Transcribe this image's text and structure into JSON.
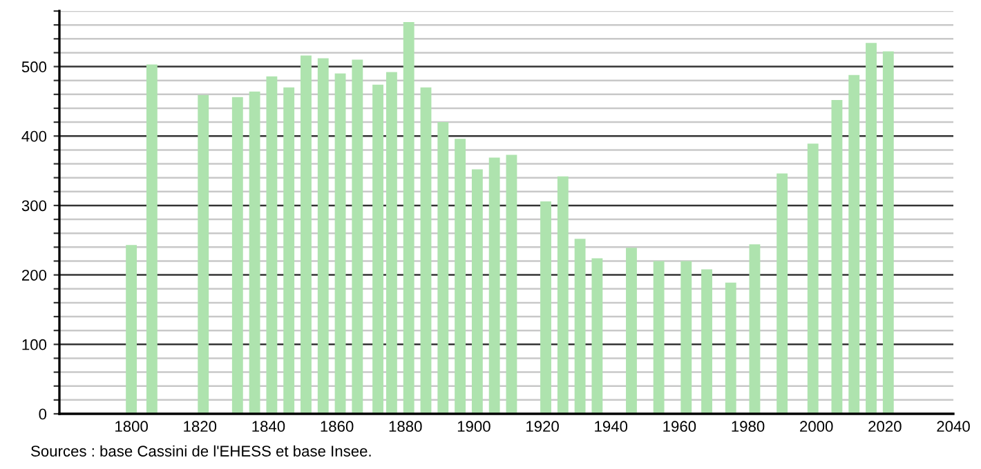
{
  "chart_data": {
    "type": "bar",
    "x": [
      1800,
      1806,
      1821,
      1831,
      1836,
      1841,
      1846,
      1851,
      1856,
      1861,
      1866,
      1872,
      1876,
      1881,
      1886,
      1891,
      1896,
      1901,
      1906,
      1911,
      1921,
      1926,
      1931,
      1936,
      1946,
      1954,
      1962,
      1968,
      1975,
      1982,
      1990,
      1999,
      2006,
      2011,
      2016,
      2021
    ],
    "values": [
      243,
      503,
      459,
      456,
      464,
      486,
      470,
      516,
      512,
      490,
      510,
      474,
      492,
      564,
      470,
      420,
      396,
      352,
      369,
      373,
      306,
      342,
      252,
      224,
      239,
      220,
      220,
      208,
      189,
      244,
      346,
      389,
      452,
      488,
      534,
      522
    ],
    "color": "#aee3ae",
    "xlim": [
      1779,
      2040
    ],
    "xticks": [
      1800,
      1820,
      1840,
      1860,
      1880,
      1900,
      1920,
      1940,
      1960,
      1980,
      2000,
      2020,
      2040
    ],
    "ylim": [
      0,
      580
    ],
    "yticks": [
      0,
      {
        "value": 20,
        "label": null
      },
      {
        "value": 40,
        "label": null
      },
      {
        "value": 60,
        "label": null
      },
      {
        "value": 80,
        "label": null
      },
      100,
      {
        "value": 120,
        "label": null
      },
      {
        "value": 140,
        "label": null
      },
      {
        "value": 160,
        "label": null
      },
      {
        "value": 180,
        "label": null
      },
      200,
      {
        "value": 220,
        "label": null
      },
      {
        "value": 240,
        "label": null
      },
      {
        "value": 260,
        "label": null
      },
      {
        "value": 280,
        "label": null
      },
      300,
      {
        "value": 320,
        "label": null
      },
      {
        "value": 340,
        "label": null
      },
      {
        "value": 360,
        "label": null
      },
      {
        "value": 380,
        "label": null
      },
      400,
      {
        "value": 420,
        "label": null
      },
      {
        "value": 440,
        "label": null
      },
      {
        "value": 460,
        "label": null
      },
      {
        "value": 480,
        "label": null
      },
      500,
      {
        "value": 520,
        "label": null
      },
      {
        "value": 540,
        "label": null
      },
      {
        "value": 560,
        "label": null
      },
      {
        "value": 580,
        "label": null
      }
    ],
    "grid": "y",
    "annotations": [
      "Sources : base Cassini de l'EHESS et base Insee."
    ]
  }
}
